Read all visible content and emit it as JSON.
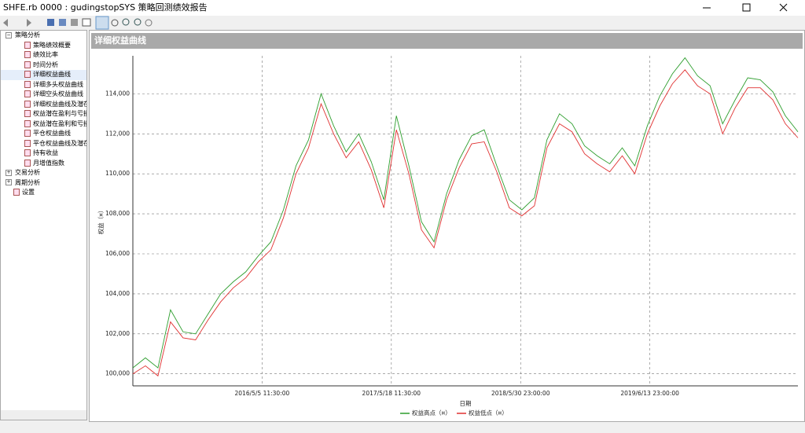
{
  "window": {
    "title": "SHFE.rb 0000 : gudingstopSYS 策略回测绩效报告"
  },
  "tree": {
    "nodes": [
      {
        "label": "策略分析",
        "children": [
          "策略绩效概要",
          "绩效比率",
          "时间分析",
          "详细权益曲线",
          "详细多头权益曲线",
          "详细空头权益曲线",
          "详细权益曲线及潜在",
          "权益潜在盈利与亏损",
          "权益潜在盈利和亏损",
          "平仓权益曲线",
          "平仓权益曲线及潜在",
          "持有收益",
          "月增值指数"
        ]
      },
      {
        "label": "交易分析"
      },
      {
        "label": "周期分析"
      },
      {
        "label": "设置"
      }
    ]
  },
  "panel": {
    "title": "详细权益曲线"
  },
  "chart_data": {
    "type": "line",
    "x_label": "日期",
    "y_label": "权益（¤）",
    "x": [
      0,
      1,
      2,
      3,
      4,
      5,
      6,
      7,
      8,
      9,
      10,
      11,
      12,
      13,
      14,
      15,
      16,
      17,
      18,
      19,
      20,
      21,
      22,
      23,
      24,
      25,
      26,
      27,
      28,
      29,
      30,
      31,
      32,
      33,
      34,
      35,
      36,
      37,
      38,
      39,
      40,
      41,
      42,
      43,
      44,
      45,
      46,
      47,
      48,
      49,
      50,
      51,
      52,
      53
    ],
    "series": [
      {
        "name": "权益高点（¤）",
        "color": "#2e9e2e",
        "values": [
          100300,
          100800,
          100300,
          103200,
          102100,
          102000,
          103000,
          104000,
          104600,
          105100,
          105900,
          106600,
          108200,
          110400,
          111700,
          114000,
          112400,
          111100,
          112000,
          110600,
          108700,
          112900,
          110400,
          107600,
          106600,
          109000,
          110700,
          111900,
          112200,
          110400,
          108700,
          108200,
          108800,
          111700,
          113000,
          112500,
          111400,
          110900,
          110500,
          111300,
          110400,
          112400,
          113900,
          115000,
          115800,
          114900,
          114400,
          112500,
          113700,
          114800,
          114700,
          114100,
          112900,
          112100
        ]
      },
      {
        "name": "权益低点（¤）",
        "color": "#e03030",
        "values": [
          100000,
          100400,
          99900,
          102600,
          101800,
          101700,
          102700,
          103600,
          104300,
          104800,
          105600,
          106200,
          107800,
          110000,
          111300,
          113500,
          112000,
          110800,
          111600,
          110200,
          108300,
          112200,
          110000,
          107200,
          106300,
          108700,
          110300,
          111500,
          111600,
          110100,
          108300,
          107900,
          108400,
          111300,
          112500,
          112100,
          111000,
          110500,
          110100,
          110900,
          110000,
          112000,
          113400,
          114500,
          115200,
          114400,
          114000,
          112000,
          113300,
          114300,
          114300,
          113700,
          112500,
          111800
        ]
      }
    ],
    "xlim": [
      0,
      53
    ],
    "xticks": [
      {
        "value": 10.3,
        "label": "2016/5/5 11:30:00"
      },
      {
        "value": 20.6,
        "label": "2017/5/18 11:30:00"
      },
      {
        "value": 30.9,
        "label": "2018/5/30 23:00:00"
      },
      {
        "value": 41.2,
        "label": "2019/6/13 23:00:00"
      }
    ],
    "ylim": [
      99400,
      115900
    ],
    "yticks": [
      {
        "value": 100000,
        "label": "100,000"
      },
      {
        "value": 102000,
        "label": "102,000"
      },
      {
        "value": 104000,
        "label": "104,000"
      },
      {
        "value": 106000,
        "label": "106,000"
      },
      {
        "value": 108000,
        "label": "108,000"
      },
      {
        "value": 110000,
        "label": "110,000"
      },
      {
        "value": 112000,
        "label": "112,000"
      },
      {
        "value": 114000,
        "label": "114,000"
      }
    ],
    "grid": true
  }
}
